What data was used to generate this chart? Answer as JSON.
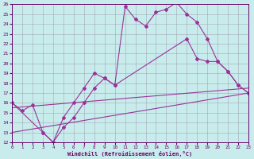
{
  "xlabel": "Windchill (Refroidissement éolien,°C)",
  "bg_color": "#c8ecec",
  "grid_color": "#9999aa",
  "line_color": "#993399",
  "xmin": 0,
  "xmax": 23,
  "ymin": 12,
  "ymax": 26,
  "line1_x": [
    0,
    1,
    2,
    3,
    4,
    5,
    6,
    7,
    8,
    9,
    10,
    11,
    12,
    13,
    14,
    15,
    16,
    17,
    18,
    19,
    20,
    21,
    22,
    23
  ],
  "line1_y": [
    16.0,
    15.2,
    15.8,
    13.0,
    12.0,
    14.5,
    16.0,
    17.5,
    19.0,
    18.5,
    17.8,
    25.8,
    24.5,
    23.8,
    25.2,
    25.5,
    26.2,
    25.0,
    24.2,
    22.5,
    20.2,
    19.2,
    17.8,
    17.0
  ],
  "line2_x": [
    0,
    3,
    4,
    5,
    6,
    7,
    8,
    9,
    10,
    17,
    18,
    19,
    20,
    21,
    22,
    23
  ],
  "line2_y": [
    16.0,
    13.0,
    12.0,
    13.5,
    14.5,
    16.0,
    17.5,
    18.5,
    17.8,
    22.5,
    20.5,
    20.2,
    20.2,
    19.2,
    17.8,
    17.0
  ],
  "line3_x": [
    0,
    23
  ],
  "line3_y": [
    15.5,
    17.5
  ],
  "line4_x": [
    0,
    23
  ],
  "line4_y": [
    13.0,
    17.0
  ],
  "xticks": [
    0,
    1,
    2,
    3,
    4,
    5,
    6,
    7,
    8,
    9,
    10,
    11,
    12,
    13,
    14,
    15,
    16,
    17,
    18,
    19,
    20,
    21,
    22,
    23
  ],
  "yticks": [
    12,
    13,
    14,
    15,
    16,
    17,
    18,
    19,
    20,
    21,
    22,
    23,
    24,
    25,
    26
  ]
}
